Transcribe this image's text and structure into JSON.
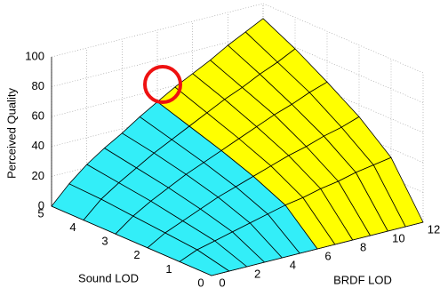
{
  "chart_data": {
    "type": "surface",
    "xlabel": "BRDF LOD",
    "ylabel": "Sound LOD",
    "zlabel": "Perceived Quality",
    "xlim": [
      0,
      12
    ],
    "ylim": [
      0,
      5
    ],
    "zlim": [
      0,
      100
    ],
    "xticks": [
      0,
      2,
      4,
      6,
      8,
      10,
      12
    ],
    "yticks": [
      0,
      1,
      2,
      3,
      4,
      5
    ],
    "zticks": [
      0,
      20,
      40,
      60,
      80,
      100
    ],
    "grid": true,
    "y": [
      0,
      1,
      2,
      3,
      4,
      5
    ],
    "series": [
      {
        "color": "#33eef8",
        "x": [
          0,
          1,
          2,
          3,
          4,
          5,
          6
        ],
        "z": [
          [
            0,
            0,
            0,
            0,
            0,
            0,
            0
          ],
          [
            0,
            5,
            8,
            11,
            14,
            17,
            20
          ],
          [
            0,
            7,
            12,
            17,
            22,
            26,
            30
          ],
          [
            0,
            9,
            16,
            22,
            28,
            33,
            38
          ],
          [
            0,
            11,
            19,
            26,
            33,
            39,
            45
          ],
          [
            0,
            12,
            22,
            30,
            37,
            45,
            52
          ]
        ]
      },
      {
        "color": "#ffff00",
        "x": [
          6,
          7,
          8,
          9,
          10,
          11,
          12
        ],
        "z": [
          [
            0,
            0,
            0,
            0,
            0,
            0,
            0
          ],
          [
            20,
            22,
            25,
            27,
            30,
            32,
            34
          ],
          [
            30,
            34,
            38,
            41,
            45,
            48,
            52
          ],
          [
            38,
            43,
            48,
            53,
            57,
            62,
            66
          ],
          [
            45,
            51,
            57,
            62,
            68,
            73,
            79
          ],
          [
            52,
            59,
            65,
            71,
            78,
            84,
            90
          ]
        ]
      }
    ]
  }
}
